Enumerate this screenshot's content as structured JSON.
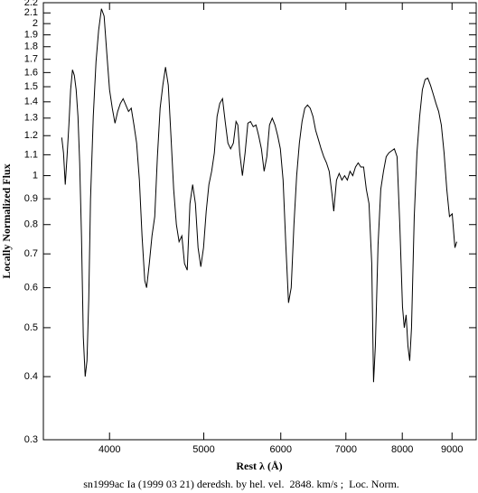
{
  "chart_data": {
    "type": "line",
    "xlabel": "Rest λ (Å)",
    "ylabel": "Locally Normalized Flux",
    "caption": "sn1999ac Ia (1999 03 21) deredsh. by hel. vel.  2848. km/s ;  Loc. Norm.",
    "xscale": "log",
    "yscale": "log",
    "color": "#000000",
    "xlim": [
      3420,
      9530
    ],
    "ylim": [
      0.3,
      2.2
    ],
    "xticks": [
      4000,
      5000,
      6000,
      7000,
      8000,
      9000
    ],
    "yticks": [
      0.3,
      0.4,
      0.5,
      0.6,
      0.7,
      0.8,
      0.9,
      1,
      1.1,
      1.2,
      1.3,
      1.4,
      1.5,
      1.6,
      1.7,
      1.8,
      1.9,
      2,
      2.1,
      2.2
    ],
    "x": [
      3572,
      3587,
      3602,
      3617,
      3633,
      3648,
      3664,
      3680,
      3696,
      3712,
      3727,
      3743,
      3759,
      3776,
      3792,
      3808,
      3824,
      3849,
      3874,
      3898,
      3924,
      3949,
      3974,
      4000,
      4026,
      4052,
      4078,
      4104,
      4131,
      4157,
      4184,
      4211,
      4238,
      4265,
      4293,
      4320,
      4348,
      4367,
      4395,
      4423,
      4452,
      4480,
      4509,
      4538,
      4567,
      4597,
      4626,
      4656,
      4686,
      4716,
      4747,
      4777,
      4808,
      4839,
      4870,
      4902,
      4933,
      4965,
      4997,
      5029,
      5061,
      5094,
      5127,
      5160,
      5193,
      5227,
      5260,
      5294,
      5328,
      5363,
      5397,
      5420,
      5444,
      5479,
      5514,
      5550,
      5585,
      5621,
      5658,
      5694,
      5731,
      5768,
      5805,
      5842,
      5880,
      5918,
      5956,
      5994,
      6033,
      6072,
      6111,
      6150,
      6190,
      6230,
      6270,
      6310,
      6351,
      6392,
      6433,
      6475,
      6516,
      6558,
      6601,
      6643,
      6686,
      6729,
      6773,
      6802,
      6846,
      6890,
      6934,
      6979,
      7024,
      7069,
      7115,
      7161,
      7207,
      7253,
      7300,
      7347,
      7394,
      7442,
      7474,
      7506,
      7554,
      7603,
      7652,
      7701,
      7751,
      7801,
      7851,
      7902,
      7953,
      8004,
      8038,
      8073,
      8108,
      8142,
      8177,
      8230,
      8283,
      8336,
      8390,
      8444,
      8498,
      8553,
      8608,
      8664,
      8719,
      8775,
      8832,
      8889,
      8946,
      9004,
      9062,
      9101
    ],
    "values": [
      1.19,
      1.11,
      0.96,
      1.09,
      1.26,
      1.48,
      1.62,
      1.58,
      1.48,
      1.31,
      1.06,
      0.76,
      0.48,
      0.4,
      0.43,
      0.57,
      0.9,
      1.31,
      1.68,
      1.94,
      2.14,
      2.07,
      1.75,
      1.48,
      1.36,
      1.27,
      1.34,
      1.39,
      1.42,
      1.38,
      1.34,
      1.36,
      1.26,
      1.16,
      0.98,
      0.76,
      0.62,
      0.6,
      0.67,
      0.76,
      0.83,
      1.09,
      1.36,
      1.51,
      1.64,
      1.51,
      1.2,
      0.94,
      0.8,
      0.74,
      0.76,
      0.67,
      0.65,
      0.88,
      0.96,
      0.88,
      0.72,
      0.66,
      0.72,
      0.85,
      0.96,
      1.02,
      1.11,
      1.31,
      1.39,
      1.42,
      1.28,
      1.16,
      1.13,
      1.16,
      1.28,
      1.26,
      1.11,
      1,
      1.11,
      1.27,
      1.28,
      1.25,
      1.26,
      1.2,
      1.13,
      1.02,
      1.09,
      1.26,
      1.3,
      1.26,
      1.2,
      1.13,
      0.98,
      0.73,
      0.56,
      0.6,
      0.8,
      1,
      1.16,
      1.28,
      1.36,
      1.38,
      1.36,
      1.31,
      1.23,
      1.18,
      1.13,
      1.09,
      1.06,
      1.02,
      0.92,
      0.85,
      0.98,
      1.01,
      0.98,
      1,
      0.98,
      1.02,
      1,
      1.04,
      1.06,
      1.04,
      1.04,
      0.94,
      0.88,
      0.67,
      0.39,
      0.46,
      0.73,
      0.94,
      1.02,
      1.09,
      1.11,
      1.12,
      1.13,
      1.09,
      0.8,
      0.55,
      0.5,
      0.53,
      0.46,
      0.43,
      0.5,
      0.83,
      1.11,
      1.31,
      1.48,
      1.55,
      1.56,
      1.51,
      1.45,
      1.39,
      1.34,
      1.26,
      1.11,
      0.94,
      0.83,
      0.84,
      0.72,
      0.74
    ]
  }
}
